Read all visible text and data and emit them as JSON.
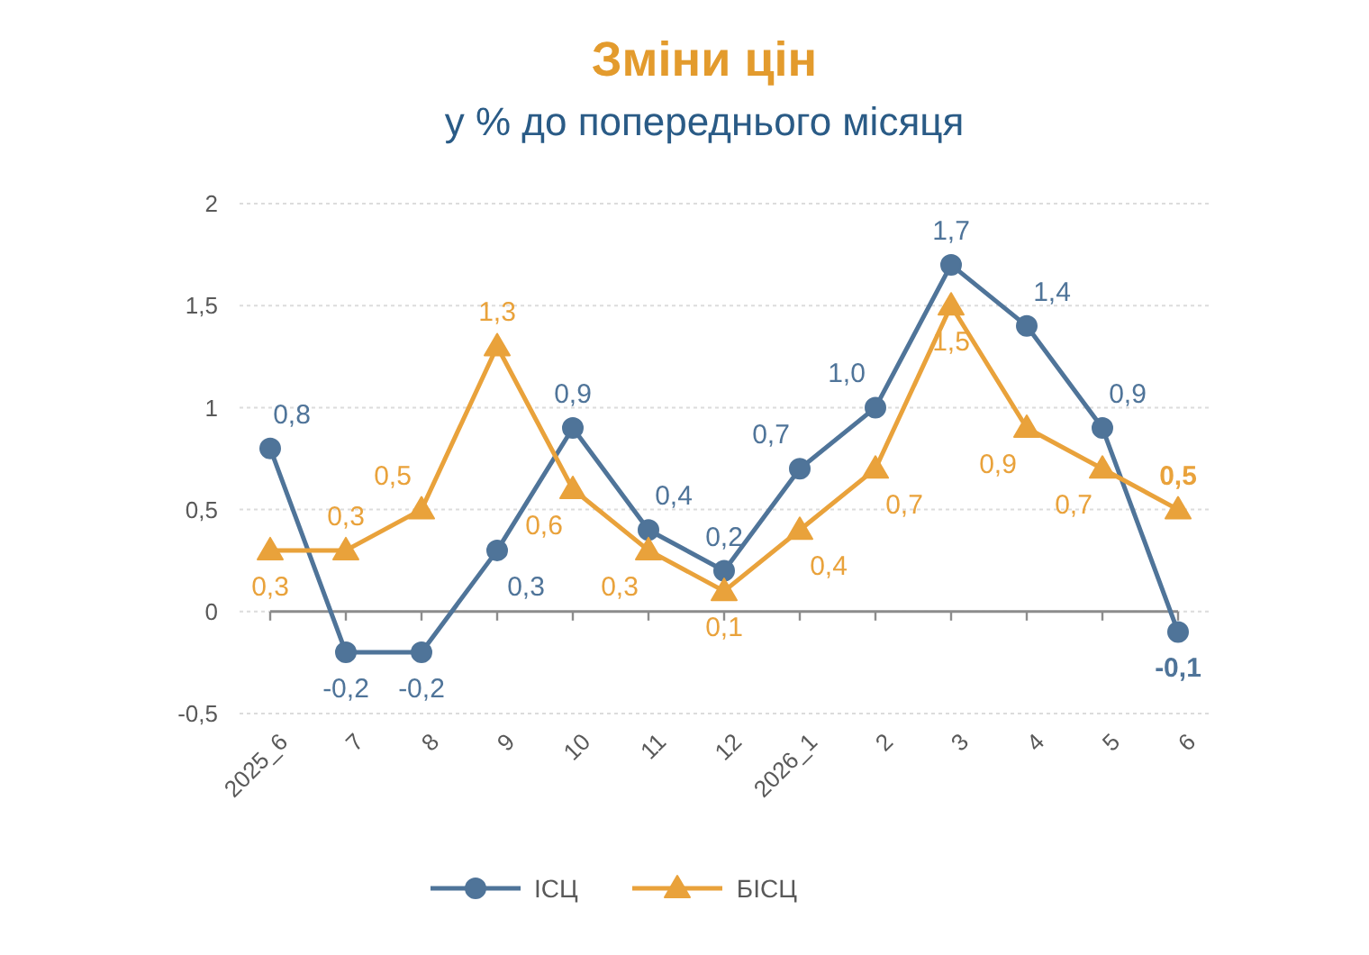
{
  "chart_data": {
    "type": "line",
    "title": "Зміни цін",
    "subtitle": "у % до попереднього місяця",
    "categories": [
      "2025_6",
      "7",
      "8",
      "9",
      "10",
      "11",
      "12",
      "2026_1",
      "2",
      "3",
      "4",
      "5",
      "6"
    ],
    "series": [
      {
        "name": "ІСЦ",
        "color": "#4f7499",
        "marker": "circle",
        "values": [
          0.8,
          -0.2,
          -0.2,
          0.3,
          0.9,
          0.4,
          0.2,
          0.7,
          1.0,
          1.7,
          1.4,
          0.9,
          -0.1
        ],
        "value_labels": [
          "0,8",
          "-0,2",
          "-0,2",
          "0,3",
          "0,9",
          "0,4",
          "0,2",
          "0,7",
          "1,0",
          "1,7",
          "1,4",
          "0,9",
          "-0,1"
        ]
      },
      {
        "name": "БІСЦ",
        "color": "#e9a23b",
        "marker": "triangle",
        "values": [
          0.3,
          0.3,
          0.5,
          1.3,
          0.6,
          0.3,
          0.1,
          0.4,
          0.7,
          1.5,
          0.9,
          0.7,
          0.5
        ],
        "value_labels": [
          "0,3",
          "0,3",
          "0,5",
          "1,3",
          "0,6",
          "0,3",
          "0,1",
          "0,4",
          "0,7",
          "1,5",
          "0,9",
          "0,7",
          "0,5"
        ]
      }
    ],
    "ylim": [
      -0.5,
      2
    ],
    "yticks": [
      {
        "value": -0.5,
        "label": "-0,5"
      },
      0,
      {
        "value": 0.5,
        "label": "0,5"
      },
      1,
      {
        "value": 1.5,
        "label": "1,5"
      },
      2
    ],
    "grid": "y",
    "legend": "bottom"
  }
}
